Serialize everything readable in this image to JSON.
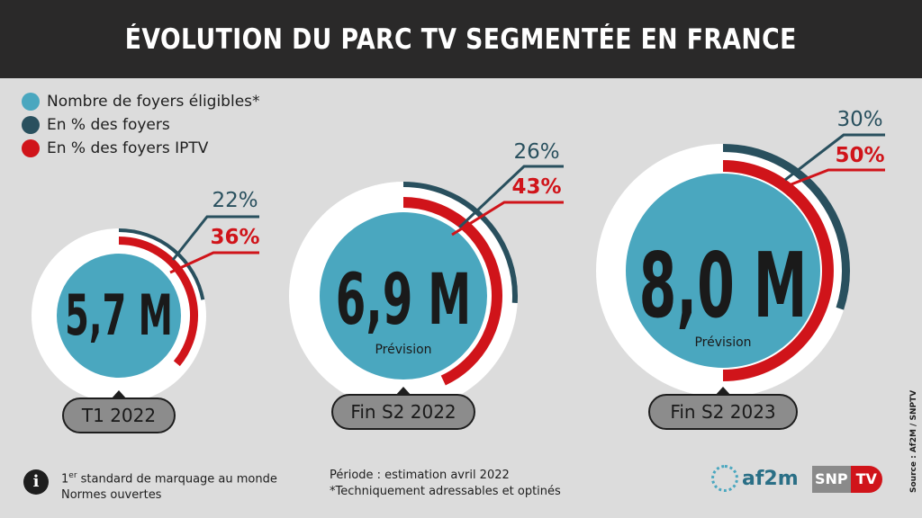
{
  "title": "ÉVOLUTION DU PARC TV SEGMENTÉE EN FRANCE",
  "legend": [
    {
      "label": "Nombre de foyers éligibles*",
      "color": "#4aa7bf"
    },
    {
      "label": "En % des foyers",
      "color": "#29505e"
    },
    {
      "label": "En % des foyers IPTV",
      "color": "#d0141a"
    }
  ],
  "chart_data": {
    "type": "donut",
    "categories": [
      "T1 2022",
      "Fin S2 2022",
      "Fin S2 2023"
    ],
    "series": [
      {
        "name": "Nombre de foyers éligibles*",
        "values": [
          5.7,
          6.9,
          8.0
        ],
        "labels": [
          "5,7 M",
          "6,9 M",
          "8,0 M"
        ]
      },
      {
        "name": "En % des foyers",
        "values": [
          22,
          26,
          30
        ],
        "labels": [
          "22%",
          "26%",
          "30%"
        ]
      },
      {
        "name": "En % des foyers IPTV",
        "values": [
          36,
          43,
          50
        ],
        "labels": [
          "36%",
          "43%",
          "50%"
        ]
      }
    ],
    "annotations": [
      "",
      "Prévision",
      "Prévision"
    ]
  },
  "footer": {
    "note1_sup": "er",
    "note1_pre": "1",
    "note1_post": " standard de marquage au monde",
    "note2": "Normes ouvertes",
    "period": "Période : estimation avril 2022",
    "footnote": "*Techniquement adressables et optinés",
    "source": "Source : Af2M / SNPTV",
    "logo1": "af2m",
    "logo2_left": "SNP",
    "logo2_right": "TV",
    "info_icon": "info-icon"
  },
  "colors": {
    "cyan": "#4aa7bf",
    "dark": "#29505e",
    "red": "#d0141a",
    "ring": "#ffffff",
    "bg": "#dcdcdc",
    "label_bg": "#8c8c8c"
  }
}
